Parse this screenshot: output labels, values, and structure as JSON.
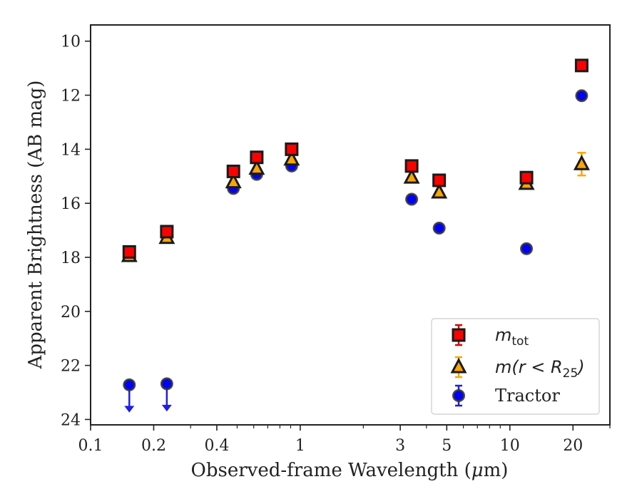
{
  "chart_data": {
    "type": "scatter",
    "xlabel_prefix": "Observed-frame Wavelength (",
    "xlabel_mu": "μ",
    "xlabel_suffix": "m)",
    "ylabel": "Apparent Brightness (AB mag)",
    "xscale": "log",
    "xlim": [
      0.1,
      30
    ],
    "ylim": [
      24.2,
      9.4
    ],
    "y_inverted": true,
    "x_ticks": [
      0.1,
      0.2,
      0.4,
      1,
      3,
      5,
      10,
      20
    ],
    "x_tick_labels": [
      "0.1",
      "0.2",
      "0.4",
      "1",
      "3",
      "5",
      "10",
      "20"
    ],
    "y_ticks": [
      10,
      12,
      14,
      16,
      18,
      20,
      22,
      24
    ],
    "y_tick_labels": [
      "10",
      "12",
      "14",
      "16",
      "18",
      "20",
      "22",
      "24"
    ],
    "legend_position": "lower-right",
    "series": [
      {
        "key": "mtot",
        "legend_main": "m",
        "legend_sub": "tot",
        "marker": "square",
        "face": "#ff0000",
        "edge": "#1a1a1a",
        "errcolor": "#e00000",
        "points": [
          {
            "x": 0.153,
            "y": 17.8
          },
          {
            "x": 0.231,
            "y": 17.05
          },
          {
            "x": 0.48,
            "y": 14.82
          },
          {
            "x": 0.62,
            "y": 14.3
          },
          {
            "x": 0.91,
            "y": 14.0
          },
          {
            "x": 3.4,
            "y": 14.62
          },
          {
            "x": 4.6,
            "y": 15.15
          },
          {
            "x": 12.0,
            "y": 15.05
          },
          {
            "x": 22.0,
            "y": 10.9
          }
        ]
      },
      {
        "key": "m25",
        "legend_main": "m(r < R",
        "legend_sub": "25",
        "legend_end": ")",
        "marker": "triangle",
        "face": "#ffa500",
        "edge": "#1a1a1a",
        "errcolor": "#ffa500",
        "points": [
          {
            "x": 0.153,
            "y": 17.95
          },
          {
            "x": 0.231,
            "y": 17.28
          },
          {
            "x": 0.48,
            "y": 15.22
          },
          {
            "x": 0.62,
            "y": 14.72
          },
          {
            "x": 0.91,
            "y": 14.38
          },
          {
            "x": 3.4,
            "y": 15.05
          },
          {
            "x": 4.6,
            "y": 15.6
          },
          {
            "x": 12.0,
            "y": 15.28
          },
          {
            "x": 22.0,
            "y": 14.55,
            "yerr": 0.42
          }
        ]
      },
      {
        "key": "tractor",
        "legend_main": "Tractor",
        "marker": "circle",
        "face": "#0000ff",
        "edge": "#333333",
        "errcolor": "#1e1ee6",
        "points": [
          {
            "x": 0.153,
            "y": 22.72,
            "upper_limit": true
          },
          {
            "x": 0.231,
            "y": 22.68,
            "upper_limit": true
          },
          {
            "x": 0.48,
            "y": 15.45
          },
          {
            "x": 0.62,
            "y": 14.93
          },
          {
            "x": 0.91,
            "y": 14.62
          },
          {
            "x": 3.4,
            "y": 15.85
          },
          {
            "x": 4.6,
            "y": 16.92
          },
          {
            "x": 12.0,
            "y": 17.68
          },
          {
            "x": 22.0,
            "y": 12.02
          }
        ]
      }
    ]
  }
}
